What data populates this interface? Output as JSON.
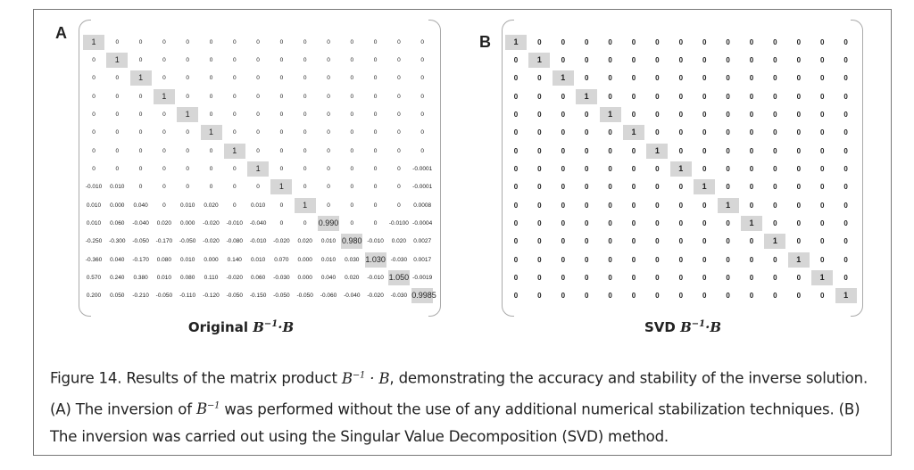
{
  "panels": [
    {
      "label": "A",
      "title": {
        "text": "Original",
        "base": "B",
        "sup": "−1",
        "op": "·",
        "rhs": "B"
      },
      "matrix": [
        [
          "1",
          "0",
          "0",
          "0",
          "0",
          "0",
          "0",
          "0",
          "0",
          "0",
          "0",
          "0",
          "0",
          "0",
          "0"
        ],
        [
          "0",
          "1",
          "0",
          "0",
          "0",
          "0",
          "0",
          "0",
          "0",
          "0",
          "0",
          "0",
          "0",
          "0",
          "0"
        ],
        [
          "0",
          "0",
          "1",
          "0",
          "0",
          "0",
          "0",
          "0",
          "0",
          "0",
          "0",
          "0",
          "0",
          "0",
          "0"
        ],
        [
          "0",
          "0",
          "0",
          "1",
          "0",
          "0",
          "0",
          "0",
          "0",
          "0",
          "0",
          "0",
          "0",
          "0",
          "0"
        ],
        [
          "0",
          "0",
          "0",
          "0",
          "1",
          "0",
          "0",
          "0",
          "0",
          "0",
          "0",
          "0",
          "0",
          "0",
          "0"
        ],
        [
          "0",
          "0",
          "0",
          "0",
          "0",
          "1",
          "0",
          "0",
          "0",
          "0",
          "0",
          "0",
          "0",
          "0",
          "0"
        ],
        [
          "0",
          "0",
          "0",
          "0",
          "0",
          "0",
          "1",
          "0",
          "0",
          "0",
          "0",
          "0",
          "0",
          "0",
          "0"
        ],
        [
          "0",
          "0",
          "0",
          "0",
          "0",
          "0",
          "0",
          "1",
          "0",
          "0",
          "0",
          "0",
          "0",
          "0",
          "-0.0001"
        ],
        [
          "-0.010",
          "0.010",
          "0",
          "0",
          "0",
          "0",
          "0",
          "0",
          "1",
          "0",
          "0",
          "0",
          "0",
          "0",
          "-0.0001"
        ],
        [
          "0.010",
          "0.000",
          "0.040",
          "0",
          "0.010",
          "0.020",
          "0",
          "0.010",
          "0",
          "1",
          "0",
          "0",
          "0",
          "0",
          "0.0008"
        ],
        [
          "0.010",
          "0.060",
          "-0.040",
          "0.020",
          "0.000",
          "-0.020",
          "-0.010",
          "-0.040",
          "0",
          "0",
          "0.990",
          "0",
          "0",
          "-0.0100",
          "-0.0004"
        ],
        [
          "-0.250",
          "-0.300",
          "-0.050",
          "-0.170",
          "-0.050",
          "-0.020",
          "-0.080",
          "-0.010",
          "-0.020",
          "0.020",
          "0.010",
          "0.980",
          "-0.010",
          "0.020",
          "0.0027"
        ],
        [
          "-0.360",
          "0.040",
          "-0.170",
          "0.080",
          "0.010",
          "0.000",
          "0.140",
          "0.010",
          "0.070",
          "0.000",
          "0.010",
          "0.030",
          "1.030",
          "-0.030",
          "0.0017"
        ],
        [
          "0.570",
          "0.240",
          "0.380",
          "0.010",
          "0.080",
          "0.110",
          "-0.020",
          "0.060",
          "-0.030",
          "0.000",
          "0.040",
          "0.020",
          "-0.010",
          "1.050",
          "-0.0019"
        ],
        [
          "0.200",
          "0.050",
          "-0.210",
          "-0.050",
          "-0.110",
          "-0.120",
          "-0.050",
          "-0.150",
          "-0.050",
          "-0.050",
          "-0.060",
          "-0.040",
          "-0.020",
          "-0.030",
          "0.9985"
        ]
      ]
    },
    {
      "label": "B",
      "title": {
        "text": "SVD",
        "base": "B",
        "sup": "−1",
        "op": "·",
        "rhs": "B"
      },
      "matrix": [
        [
          "1",
          "0",
          "0",
          "0",
          "0",
          "0",
          "0",
          "0",
          "0",
          "0",
          "0",
          "0",
          "0",
          "0",
          "0"
        ],
        [
          "0",
          "1",
          "0",
          "0",
          "0",
          "0",
          "0",
          "0",
          "0",
          "0",
          "0",
          "0",
          "0",
          "0",
          "0"
        ],
        [
          "0",
          "0",
          "1",
          "0",
          "0",
          "0",
          "0",
          "0",
          "0",
          "0",
          "0",
          "0",
          "0",
          "0",
          "0"
        ],
        [
          "0",
          "0",
          "0",
          "1",
          "0",
          "0",
          "0",
          "0",
          "0",
          "0",
          "0",
          "0",
          "0",
          "0",
          "0"
        ],
        [
          "0",
          "0",
          "0",
          "0",
          "1",
          "0",
          "0",
          "0",
          "0",
          "0",
          "0",
          "0",
          "0",
          "0",
          "0"
        ],
        [
          "0",
          "0",
          "0",
          "0",
          "0",
          "1",
          "0",
          "0",
          "0",
          "0",
          "0",
          "0",
          "0",
          "0",
          "0"
        ],
        [
          "0",
          "0",
          "0",
          "0",
          "0",
          "0",
          "1",
          "0",
          "0",
          "0",
          "0",
          "0",
          "0",
          "0",
          "0"
        ],
        [
          "0",
          "0",
          "0",
          "0",
          "0",
          "0",
          "0",
          "1",
          "0",
          "0",
          "0",
          "0",
          "0",
          "0",
          "0"
        ],
        [
          "0",
          "0",
          "0",
          "0",
          "0",
          "0",
          "0",
          "0",
          "1",
          "0",
          "0",
          "0",
          "0",
          "0",
          "0"
        ],
        [
          "0",
          "0",
          "0",
          "0",
          "0",
          "0",
          "0",
          "0",
          "0",
          "1",
          "0",
          "0",
          "0",
          "0",
          "0"
        ],
        [
          "0",
          "0",
          "0",
          "0",
          "0",
          "0",
          "0",
          "0",
          "0",
          "0",
          "1",
          "0",
          "0",
          "0",
          "0"
        ],
        [
          "0",
          "0",
          "0",
          "0",
          "0",
          "0",
          "0",
          "0",
          "0",
          "0",
          "0",
          "1",
          "0",
          "0",
          "0"
        ],
        [
          "0",
          "0",
          "0",
          "0",
          "0",
          "0",
          "0",
          "0",
          "0",
          "0",
          "0",
          "0",
          "1",
          "0",
          "0"
        ],
        [
          "0",
          "0",
          "0",
          "0",
          "0",
          "0",
          "0",
          "0",
          "0",
          "0",
          "0",
          "0",
          "0",
          "1",
          "0"
        ],
        [
          "0",
          "0",
          "0",
          "0",
          "0",
          "0",
          "0",
          "0",
          "0",
          "0",
          "0",
          "0",
          "0",
          "0",
          "1"
        ]
      ]
    }
  ],
  "caption": {
    "label": "Figure 14.",
    "segments": [
      {
        "text": " Results of the matrix product "
      },
      {
        "base": "B",
        "sup": "−1",
        "op": " · ",
        "rhs": "B"
      },
      {
        "text": ", demonstrating the accuracy and stability of the inverse solution. (A) The inversion of "
      },
      {
        "base": "B",
        "sup": "−1"
      },
      {
        "text": " was performed without the use of any additional numerical stabilization techniques. (B) The inversion was carried out using the Singular Value Decomposition (SVD) method."
      }
    ]
  }
}
